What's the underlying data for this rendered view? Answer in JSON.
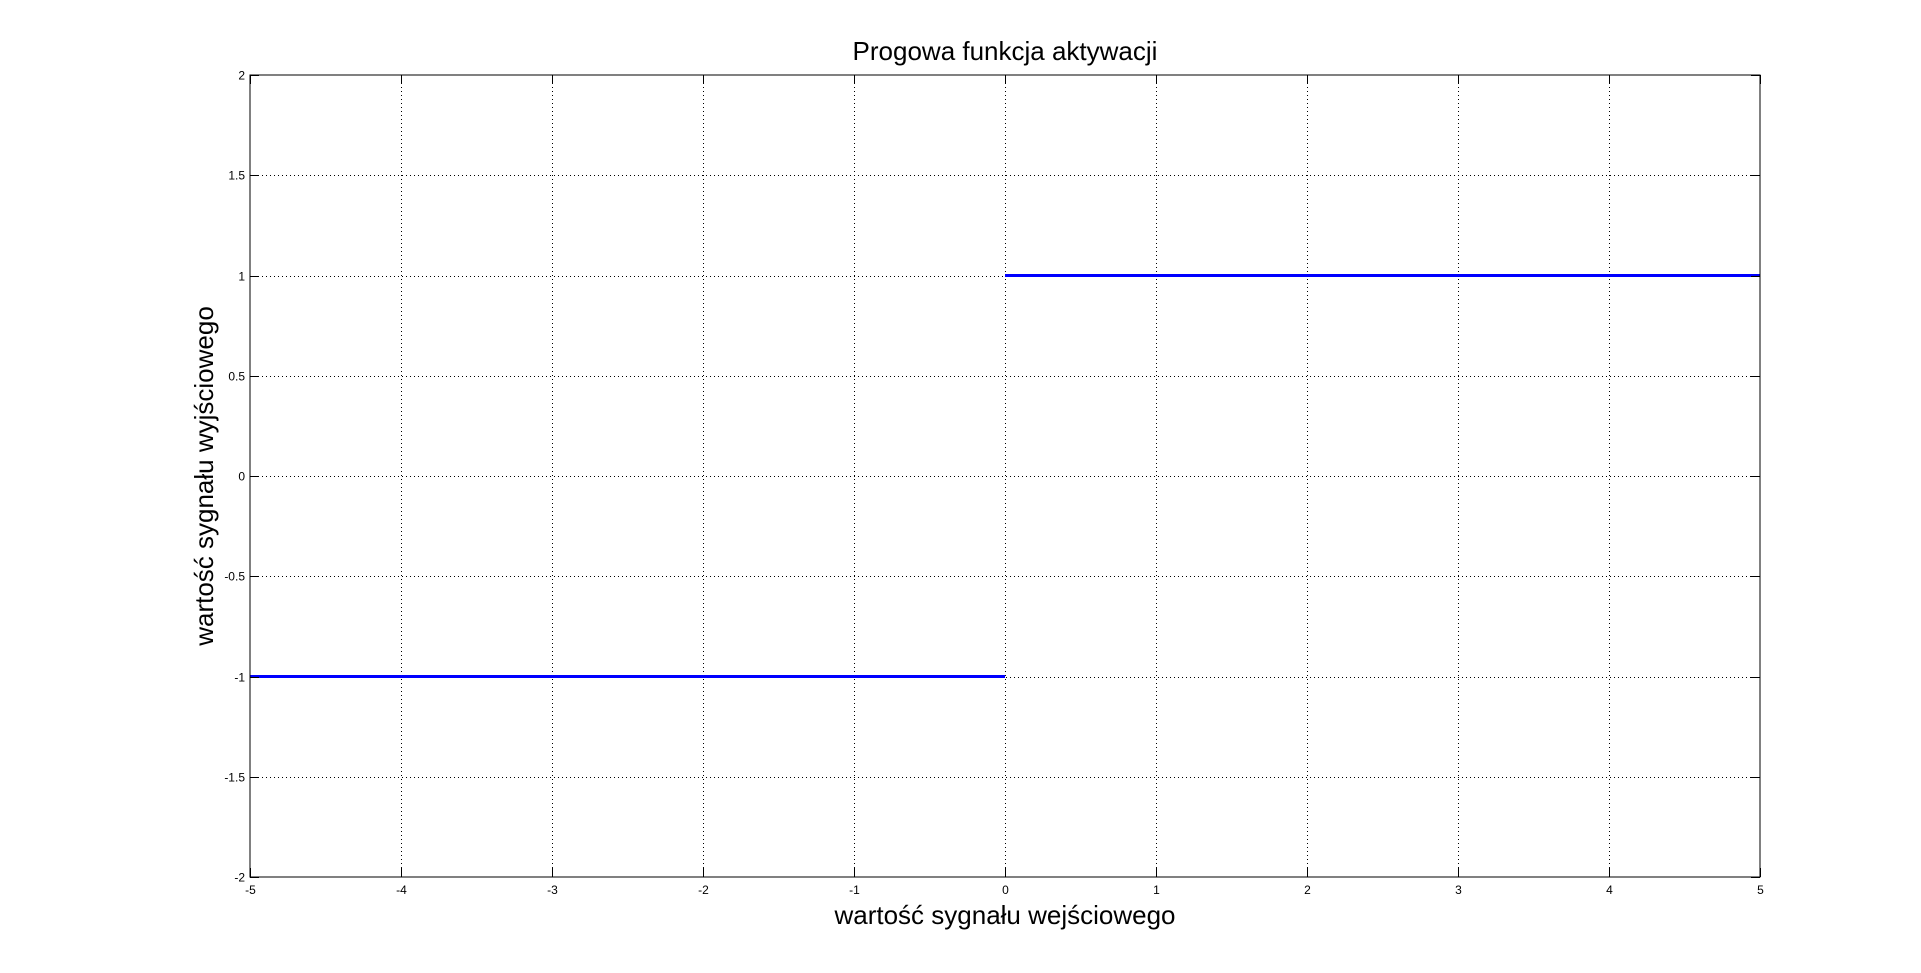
{
  "chart_data": {
    "type": "line",
    "title": "Progowa funkcja aktywacji",
    "xlabel": "wartość sygnału wejściowego",
    "ylabel": "wartość sygnału wyjściowego",
    "xlim": [
      -5,
      5
    ],
    "ylim": [
      -2,
      2
    ],
    "x_ticks": [
      -5,
      -4,
      -3,
      -2,
      -1,
      0,
      1,
      2,
      3,
      4,
      5
    ],
    "x_tick_labels": [
      "-5",
      "-4",
      "-3",
      "-2",
      "-1",
      "0",
      "1",
      "2",
      "3",
      "4",
      "5"
    ],
    "y_ticks": [
      -2,
      -1.5,
      -1,
      -0.5,
      0,
      0.5,
      1,
      1.5,
      2
    ],
    "y_tick_labels": [
      "-2",
      "-1.5",
      "-1",
      "-0.5",
      "0",
      "0.5",
      "1",
      "1.5",
      "2"
    ],
    "grid": true,
    "grid_style": "dotted",
    "series": [
      {
        "color": "#0000ff",
        "segments": [
          {
            "x": [
              -5,
              0
            ],
            "y": [
              -1,
              -1
            ]
          },
          {
            "x": [
              0,
              5
            ],
            "y": [
              1,
              1
            ]
          }
        ]
      }
    ]
  }
}
